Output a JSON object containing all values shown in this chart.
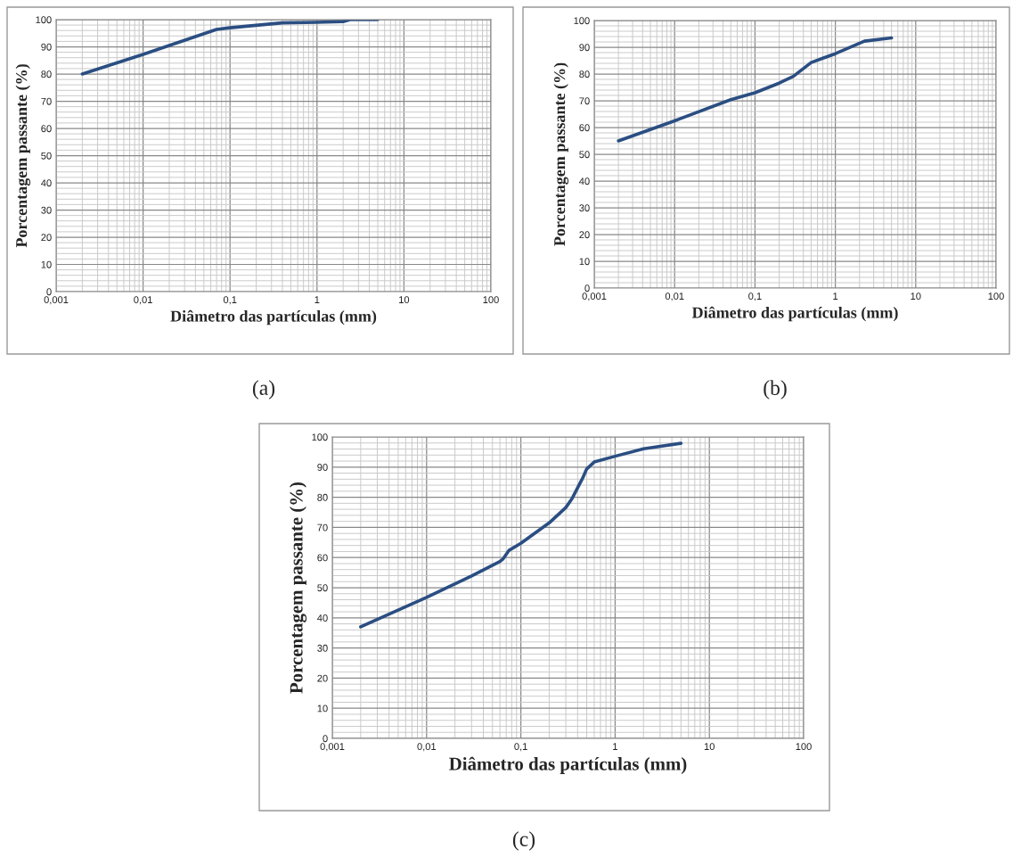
{
  "chart_data": [
    {
      "type": "line",
      "xlabel": "Diâmetro das partículas (mm)",
      "ylabel": "Porcentagem passante (%)",
      "annotations": [
        "(a)"
      ],
      "log": "x",
      "grid": true,
      "xlim": [
        0.001,
        100
      ],
      "xticks": [
        {
          "value": 0.001,
          "label": "0,001"
        },
        {
          "value": 0.01,
          "label": "0,01"
        },
        {
          "value": 0.1,
          "label": "0,1"
        },
        1,
        10,
        100
      ],
      "ylim": [
        0,
        100
      ],
      "yticks": [
        0,
        10,
        20,
        30,
        40,
        50,
        60,
        70,
        80,
        90,
        100
      ],
      "series": [
        {
          "color": "#2a4e82",
          "x": [
            0.002,
            0.01,
            0.02,
            0.07,
            0.1,
            0.4,
            1,
            2,
            2.4,
            5
          ],
          "values": [
            80,
            87.2,
            90.5,
            96.4,
            97,
            98.8,
            99,
            99.3,
            100,
            100
          ]
        }
      ]
    },
    {
      "type": "line",
      "xlabel": "Diâmetro das partículas (mm)",
      "ylabel": "Porcentagem passante (%)",
      "annotations": [
        "(b)"
      ],
      "log": "x",
      "grid": true,
      "xlim": [
        0.001,
        100
      ],
      "xticks": [
        {
          "value": 0.001,
          "label": "0,001"
        },
        {
          "value": 0.01,
          "label": "0,01"
        },
        {
          "value": 0.1,
          "label": "0,1"
        },
        1,
        10,
        100
      ],
      "ylim": [
        0,
        100
      ],
      "yticks": [
        0,
        10,
        20,
        30,
        40,
        50,
        60,
        70,
        80,
        90,
        100
      ],
      "series": [
        {
          "color": "#2a4e82",
          "x": [
            0.002,
            0.01,
            0.05,
            0.1,
            0.2,
            0.3,
            0.5,
            0.7,
            1,
            2.3,
            5
          ],
          "values": [
            55,
            62.5,
            70.4,
            73,
            76.6,
            79.1,
            84.3,
            85.9,
            87.6,
            92.3,
            93.5
          ]
        }
      ]
    },
    {
      "type": "line",
      "xlabel": "Diâmetro das partículas (mm)",
      "ylabel": "Porcentagem passante (%)",
      "annotations": [
        "(c)"
      ],
      "log": "x",
      "grid": true,
      "xlim": [
        0.001,
        100
      ],
      "xticks": [
        {
          "value": 0.001,
          "label": "0,001"
        },
        {
          "value": 0.01,
          "label": "0,01"
        },
        {
          "value": 0.1,
          "label": "0,1"
        },
        1,
        10,
        100
      ],
      "ylim": [
        0,
        100
      ],
      "yticks": [
        0,
        10,
        20,
        30,
        40,
        50,
        60,
        70,
        80,
        90,
        100
      ],
      "series": [
        {
          "color": "#2a4e82",
          "x": [
            0.002,
            0.01,
            0.03,
            0.06,
            0.065,
            0.075,
            0.1,
            0.2,
            0.3,
            0.35,
            0.45,
            0.5,
            0.6,
            1,
            2,
            5
          ],
          "values": [
            37,
            46.8,
            53.9,
            58.7,
            59.6,
            62.4,
            64.7,
            71.5,
            76.6,
            79.6,
            86.2,
            89.4,
            91.7,
            93.6,
            96.1,
            97.9
          ]
        }
      ]
    }
  ]
}
